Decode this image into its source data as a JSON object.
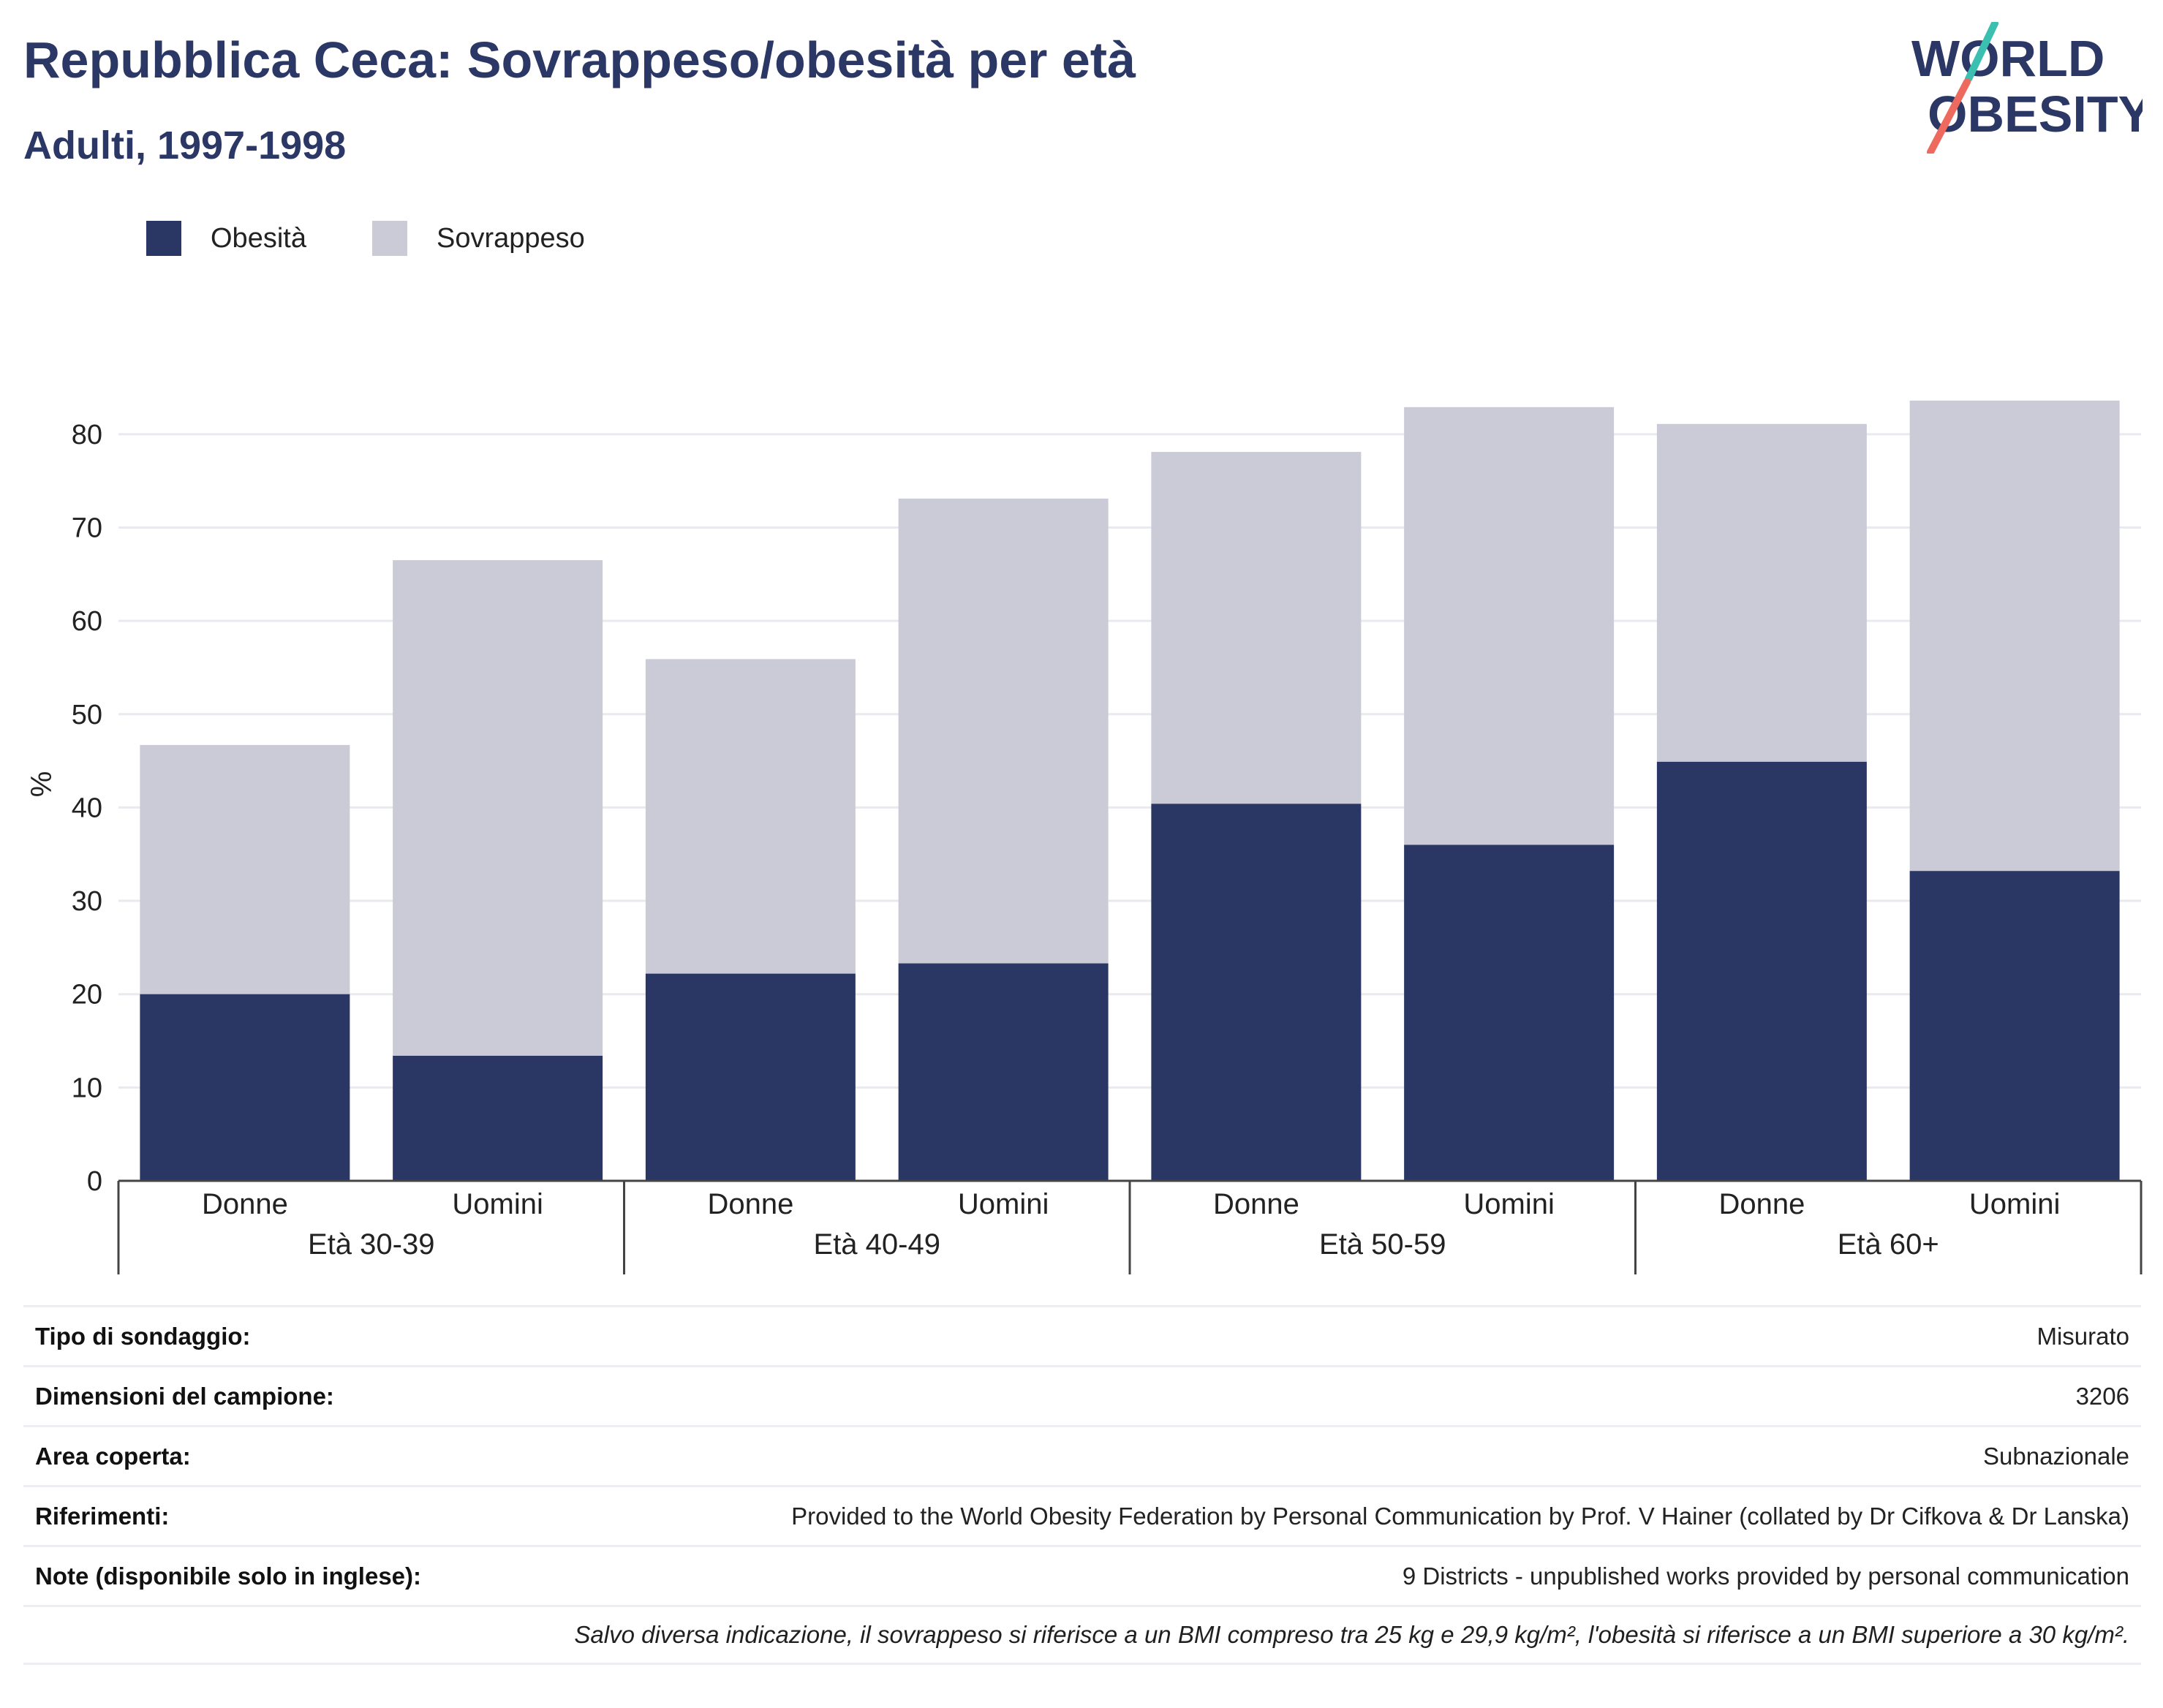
{
  "header": {
    "title": "Repubblica Ceca: Sovrappeso/obesità per età",
    "subtitle": "Adulti, 1997-1998"
  },
  "logo": {
    "line1": "WORLD",
    "line2": "OBESITY"
  },
  "colors": {
    "obesity": "#2a3764",
    "overweight": "#cacbd7",
    "title": "#2b3765",
    "logo_teal": "#3bbfb1",
    "logo_coral": "#ee6a5f"
  },
  "legend": [
    {
      "label": "Obesità",
      "color": "#2a3764"
    },
    {
      "label": "Sovrappeso",
      "color": "#cacbd7"
    }
  ],
  "chart_data": {
    "type": "bar",
    "stacked": true,
    "ylabel": "%",
    "ylim": [
      0,
      85
    ],
    "yticks": [
      0,
      10,
      20,
      30,
      40,
      50,
      60,
      70,
      80
    ],
    "grid": true,
    "legend_position": "top-left",
    "groups": [
      {
        "label": "Età 30-39",
        "categories": [
          "Donne",
          "Uomini"
        ]
      },
      {
        "label": "Età 40-49",
        "categories": [
          "Donne",
          "Uomini"
        ]
      },
      {
        "label": "Età 50-59",
        "categories": [
          "Donne",
          "Uomini"
        ]
      },
      {
        "label": "Età 60+",
        "categories": [
          "Donne",
          "Uomini"
        ]
      }
    ],
    "series": [
      {
        "name": "Obesità",
        "values": [
          20.0,
          13.4,
          22.2,
          23.3,
          40.4,
          36.0,
          44.9,
          33.2
        ]
      },
      {
        "name": "Sovrappeso",
        "values": [
          26.7,
          53.1,
          33.7,
          49.8,
          37.7,
          46.9,
          36.2,
          50.4
        ]
      }
    ]
  },
  "info": {
    "rows": [
      {
        "key": "Tipo di sondaggio:",
        "value": "Misurato"
      },
      {
        "key": "Dimensioni del campione:",
        "value": "3206"
      },
      {
        "key": "Area coperta:",
        "value": "Subnazionale"
      },
      {
        "key": "Riferimenti:",
        "value": "Provided to the World Obesity Federation by Personal Communication by Prof. V Hainer (collated by Dr Cifkova & Dr Lanska)"
      },
      {
        "key": "Note (disponibile solo in inglese):",
        "value": "9 Districts - unpublished works provided by personal communication"
      }
    ],
    "footnote": "Salvo diversa indicazione, il sovrappeso si riferisce a un BMI compreso tra 25 kg e 29,9 kg/m², l'obesità si riferisce a un BMI superiore a 30 kg/m²."
  }
}
